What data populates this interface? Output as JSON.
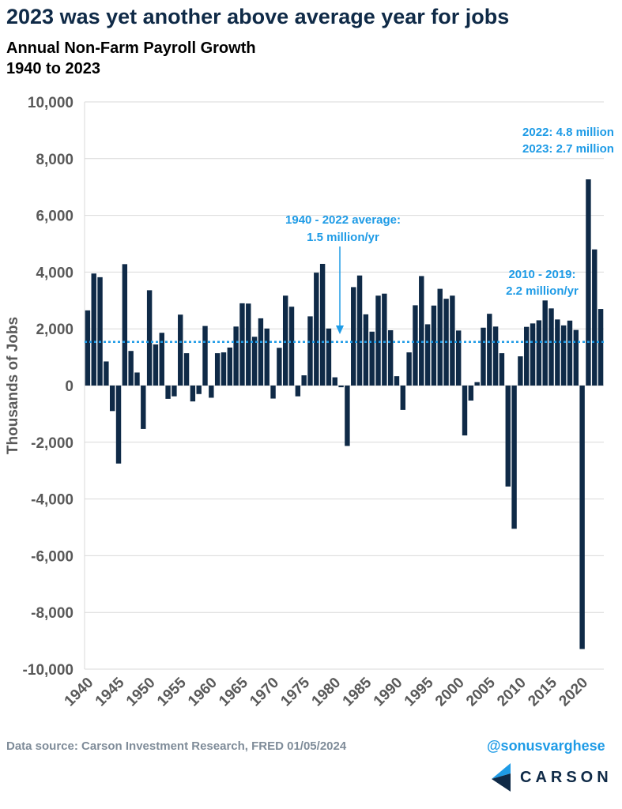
{
  "title": "2023 was yet another above average year for jobs",
  "subtitle_line1": "Annual Non-Farm Payroll Growth",
  "subtitle_line2": "1940 to 2023",
  "source": "Data source: Carson Investment Research, FRED   01/05/2024",
  "handle": "@sonusvarghese",
  "logo_text": "CARSON",
  "colors": {
    "bar": "#0f2a47",
    "accent": "#1e9be6",
    "axis_text": "#595959",
    "grid": "#d9d9d9"
  },
  "chart_data": {
    "type": "bar",
    "ylabel": "Thousands of Jobs",
    "ylim": [
      -10000,
      10000
    ],
    "yticks": [
      10000,
      8000,
      6000,
      4000,
      2000,
      0,
      -2000,
      -4000,
      -6000,
      -8000,
      -10000
    ],
    "ytick_labels": [
      "10,000",
      "8,000",
      "6,000",
      "4,000",
      "2,000",
      "0",
      "-2,000",
      "-4,000",
      "-6,000",
      "-8,000",
      "-10,000"
    ],
    "xtick_labels": [
      "1940",
      "1945",
      "1950",
      "1955",
      "1960",
      "1965",
      "1970",
      "1975",
      "1980",
      "1985",
      "1990",
      "1995",
      "2000",
      "2005",
      "2010",
      "2015",
      "2020"
    ],
    "grid": true,
    "years": [
      1940,
      1941,
      1942,
      1943,
      1944,
      1945,
      1946,
      1947,
      1948,
      1949,
      1950,
      1951,
      1952,
      1953,
      1954,
      1955,
      1956,
      1957,
      1958,
      1959,
      1960,
      1961,
      1962,
      1963,
      1964,
      1965,
      1966,
      1967,
      1968,
      1969,
      1970,
      1971,
      1972,
      1973,
      1974,
      1975,
      1976,
      1977,
      1978,
      1979,
      1980,
      1981,
      1982,
      1983,
      1984,
      1985,
      1986,
      1987,
      1988,
      1989,
      1990,
      1991,
      1992,
      1993,
      1994,
      1995,
      1996,
      1997,
      1998,
      1999,
      2000,
      2001,
      2002,
      2003,
      2004,
      2005,
      2006,
      2007,
      2008,
      2009,
      2010,
      2011,
      2012,
      2013,
      2014,
      2015,
      2016,
      2017,
      2018,
      2019,
      2020,
      2021,
      2022,
      2023
    ],
    "values": [
      2650,
      3950,
      3820,
      850,
      -900,
      -2750,
      4280,
      1220,
      460,
      -1530,
      3360,
      1450,
      1860,
      -470,
      -380,
      2500,
      1140,
      -560,
      -300,
      2100,
      -430,
      1140,
      1170,
      1340,
      2080,
      2900,
      2890,
      1720,
      2370,
      2010,
      -460,
      1330,
      3170,
      2780,
      -380,
      360,
      2440,
      3980,
      4290,
      2010,
      290,
      -60,
      -2130,
      3470,
      3880,
      2510,
      1900,
      3170,
      3240,
      1950,
      330,
      -860,
      1170,
      2830,
      3860,
      2160,
      2820,
      3410,
      3060,
      3170,
      1940,
      -1760,
      -530,
      120,
      2040,
      2530,
      2080,
      1140,
      -3560,
      -5050,
      1030,
      2070,
      2190,
      2300,
      3000,
      2720,
      2330,
      2120,
      2290,
      1960,
      -9290,
      7270,
      4800,
      2700
    ],
    "average": 1540,
    "annotations": [
      {
        "line1": "1940 - 2022 average:",
        "line2": "1.5 million/yr"
      },
      {
        "line1": "2010 - 2019:",
        "line2": "2.2 million/yr"
      },
      {
        "line1": "2022: 4.8 million",
        "line2": "2023: 2.7 million"
      }
    ]
  }
}
